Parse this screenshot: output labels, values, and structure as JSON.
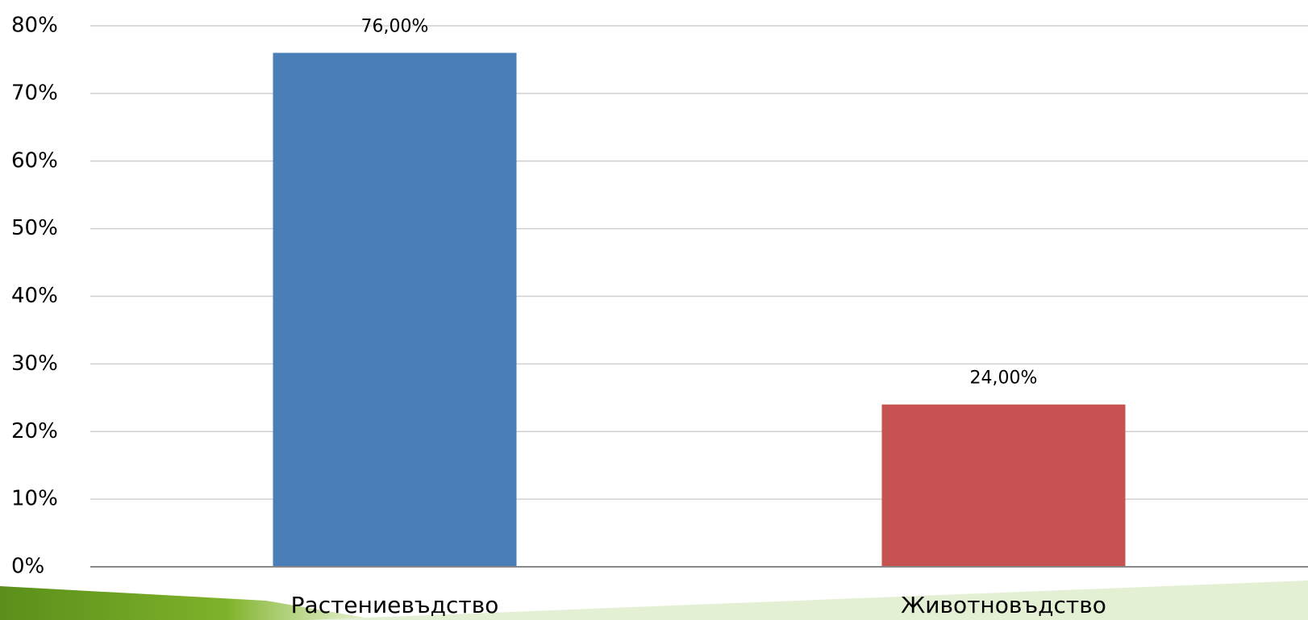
{
  "chart_data": {
    "type": "bar",
    "categories": [
      "Растениевъдство",
      "Животновъдство"
    ],
    "values": [
      76,
      24
    ],
    "value_labels": [
      "76,00%",
      "24,00%"
    ],
    "colors": [
      "#4a7eb8",
      "#c75252"
    ],
    "ylim": [
      0,
      80
    ],
    "yticks": [
      {
        "value": 0,
        "label": "0%"
      },
      {
        "value": 10,
        "label": "10%"
      },
      {
        "value": 20,
        "label": "20%"
      },
      {
        "value": 30,
        "label": "30%"
      },
      {
        "value": 40,
        "label": "40%"
      },
      {
        "value": 50,
        "label": "50%"
      },
      {
        "value": 60,
        "label": "60%"
      },
      {
        "value": 70,
        "label": "70%"
      },
      {
        "value": 80,
        "label": "80%"
      }
    ],
    "grid": true
  }
}
